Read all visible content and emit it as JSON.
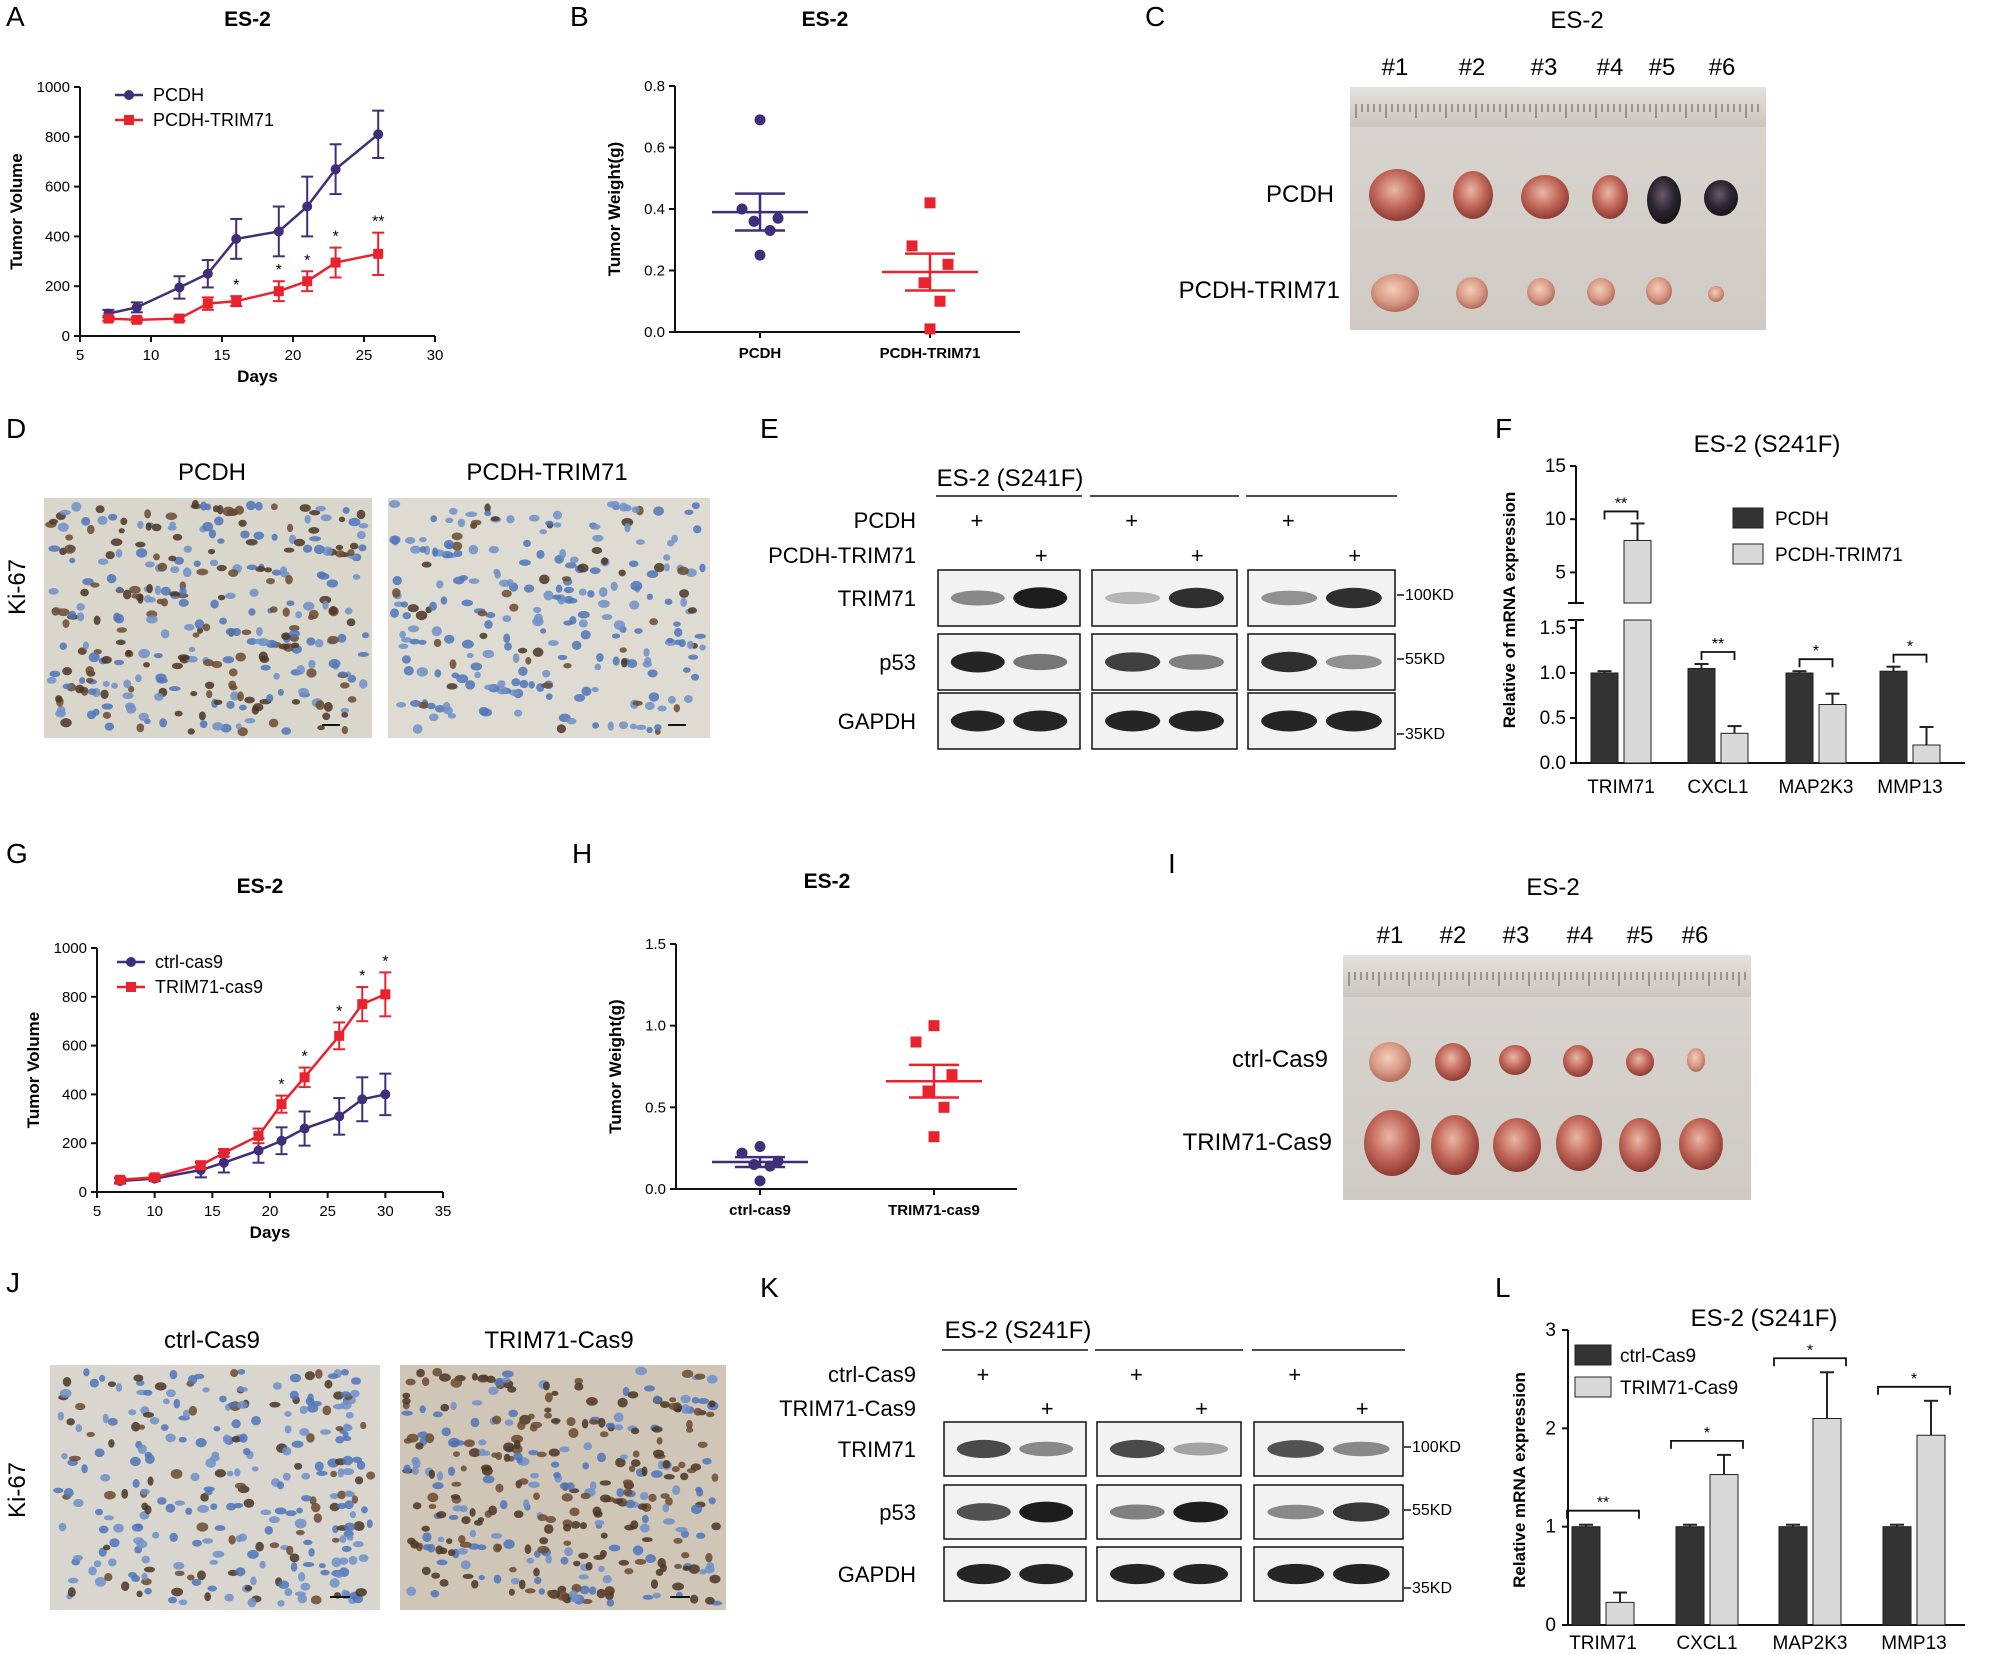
{
  "colors": {
    "purple": "#3f2f7a",
    "red": "#e8232d",
    "darkbar": "#333333",
    "lightbar": "#d9d9d9"
  },
  "panel_labels": {
    "A": "A",
    "B": "B",
    "C": "C",
    "D": "D",
    "E": "E",
    "F": "F",
    "G": "G",
    "H": "H",
    "I": "I",
    "J": "J",
    "K": "K",
    "L": "L"
  },
  "photos": {
    "C": {
      "title": "ES-2",
      "labels": [
        "#1",
        "#2",
        "#3",
        "#4",
        "#5",
        "#6"
      ],
      "rows": [
        "PCDH",
        "PCDH-TRIM71"
      ]
    },
    "I": {
      "title": "ES-2",
      "labels": [
        "#1",
        "#2",
        "#3",
        "#4",
        "#5",
        "#6"
      ],
      "rows": [
        "ctrl-Cas9",
        "TRIM71-Cas9"
      ]
    },
    "D": {
      "ylabel": "Ki-67",
      "left": "PCDH",
      "right": "PCDH-TRIM71"
    },
    "J": {
      "ylabel": "Ki-67",
      "left": "ctrl-Cas9",
      "right": "TRIM71-Cas9"
    }
  },
  "blots": {
    "E": {
      "title": "ES-2 (S241F)",
      "row1": "PCDH",
      "row2": "PCDH-TRIM71",
      "plus": "+",
      "bands": [
        "TRIM71",
        "p53",
        "GAPDH"
      ],
      "markers": [
        "100KD",
        "55KD",
        "35KD"
      ]
    },
    "K": {
      "title": "ES-2 (S241F)",
      "row1": "ctrl-Cas9",
      "row2": "TRIM71-Cas9",
      "plus": "+",
      "bands": [
        "TRIM71",
        "p53",
        "GAPDH"
      ],
      "markers": [
        "100KD",
        "55KD",
        "35KD"
      ]
    }
  },
  "chart_data": [
    {
      "id": "A",
      "type": "line",
      "title": "ES-2",
      "xlabel": "Days",
      "ylabel": "Tumor Volume",
      "xlim": [
        5,
        30
      ],
      "ylim": [
        0,
        1000
      ],
      "xticks": [
        5,
        10,
        15,
        20,
        25,
        30
      ],
      "yticks": [
        0,
        200,
        400,
        600,
        800,
        1000
      ],
      "series": [
        {
          "name": "PCDH",
          "color": "#3f2f7a",
          "marker": "circle",
          "x": [
            7,
            9,
            12,
            14,
            16,
            19,
            21,
            23,
            26
          ],
          "y": [
            90,
            115,
            195,
            250,
            390,
            420,
            520,
            670,
            810
          ],
          "err": [
            15,
            20,
            45,
            55,
            80,
            100,
            120,
            100,
            95
          ]
        },
        {
          "name": "PCDH-TRIM71",
          "color": "#e8232d",
          "marker": "square",
          "x": [
            7,
            9,
            12,
            14,
            16,
            19,
            21,
            23,
            26
          ],
          "y": [
            70,
            65,
            70,
            130,
            140,
            180,
            220,
            295,
            330
          ],
          "err": [
            10,
            10,
            10,
            25,
            20,
            40,
            40,
            60,
            85
          ]
        }
      ],
      "annotations": [
        {
          "x": 16,
          "text": "*"
        },
        {
          "x": 19,
          "text": "*"
        },
        {
          "x": 21,
          "text": "*"
        },
        {
          "x": 23,
          "text": "*"
        },
        {
          "x": 26,
          "text": "**"
        }
      ]
    },
    {
      "id": "B",
      "type": "scatter",
      "title": "ES-2",
      "ylabel": "Tumor Weight(g)",
      "ylim": [
        0,
        0.8
      ],
      "yticks": [
        "0.0",
        "0.2",
        "0.4",
        "0.6",
        "0.8"
      ],
      "categories": [
        "PCDH",
        "PCDH-TRIM71"
      ],
      "series": [
        {
          "name": "PCDH",
          "color": "#3f2f7a",
          "marker": "circle",
          "values": [
            0.69,
            0.4,
            0.37,
            0.36,
            0.33,
            0.25
          ],
          "mean": 0.39,
          "sem": 0.06
        },
        {
          "name": "PCDH-TRIM71",
          "color": "#e8232d",
          "marker": "square",
          "values": [
            0.42,
            0.28,
            0.22,
            0.16,
            0.1,
            0.01
          ],
          "mean": 0.195,
          "sem": 0.06
        }
      ]
    },
    {
      "id": "F",
      "type": "bar",
      "title": "ES-2 (S241F)",
      "ylabel": "Relative of mRNA expression",
      "categories": [
        "TRIM71",
        "CXCL1",
        "MAP2K3",
        "MMP13"
      ],
      "upper_ticks": [
        "5",
        "10",
        "15"
      ],
      "lower_ticks": [
        "0.0",
        "0.5",
        "1.0",
        "1.5"
      ],
      "series": [
        {
          "name": "PCDH",
          "color": "#333333",
          "values": [
            1.0,
            1.05,
            1.0,
            1.02
          ],
          "err": [
            0.02,
            0.05,
            0.02,
            0.05
          ]
        },
        {
          "name": "PCDH-TRIM71",
          "color": "#d9d9d9",
          "values": [
            8.0,
            0.33,
            0.65,
            0.2
          ],
          "err": [
            1.6,
            0.08,
            0.12,
            0.2
          ]
        }
      ],
      "significance": [
        "**",
        "**",
        "*",
        "*"
      ]
    },
    {
      "id": "G",
      "type": "line",
      "title": "ES-2",
      "xlabel": "Days",
      "ylabel": "Tumor Volume",
      "xlim": [
        5,
        35
      ],
      "ylim": [
        0,
        1000
      ],
      "xticks": [
        5,
        10,
        15,
        20,
        25,
        30,
        35
      ],
      "yticks": [
        0,
        200,
        400,
        600,
        800,
        1000
      ],
      "series": [
        {
          "name": "ctrl-cas9",
          "color": "#3f2f7a",
          "marker": "circle",
          "x": [
            7,
            10,
            14,
            16,
            19,
            21,
            23,
            26,
            28,
            30
          ],
          "y": [
            45,
            55,
            90,
            120,
            170,
            210,
            260,
            310,
            380,
            400
          ],
          "err": [
            10,
            10,
            30,
            40,
            50,
            55,
            70,
            75,
            90,
            85
          ]
        },
        {
          "name": "TRIM71-cas9",
          "color": "#e8232d",
          "marker": "square",
          "x": [
            7,
            10,
            14,
            16,
            19,
            21,
            23,
            26,
            28,
            30
          ],
          "y": [
            50,
            60,
            110,
            160,
            230,
            360,
            470,
            640,
            770,
            810
          ],
          "err": [
            10,
            10,
            15,
            15,
            30,
            35,
            40,
            55,
            70,
            90
          ]
        }
      ],
      "annotations": [
        {
          "x": 21,
          "text": "*"
        },
        {
          "x": 23,
          "text": "*"
        },
        {
          "x": 26,
          "text": "*"
        },
        {
          "x": 28,
          "text": "*"
        },
        {
          "x": 30,
          "text": "*"
        }
      ]
    },
    {
      "id": "H",
      "type": "scatter",
      "title": "ES-2",
      "ylabel": "Tumor Weight(g)",
      "ylim": [
        0,
        1.5
      ],
      "yticks": [
        "0.0",
        "0.5",
        "1.0",
        "1.5"
      ],
      "categories": [
        "ctrl-cas9",
        "TRIM71-cas9"
      ],
      "series": [
        {
          "name": "ctrl-cas9",
          "color": "#3f2f7a",
          "marker": "circle",
          "values": [
            0.26,
            0.22,
            0.17,
            0.15,
            0.14,
            0.05
          ],
          "mean": 0.165,
          "sem": 0.03
        },
        {
          "name": "TRIM71-cas9",
          "color": "#e8232d",
          "marker": "square",
          "values": [
            1.0,
            0.9,
            0.7,
            0.6,
            0.5,
            0.32
          ],
          "mean": 0.66,
          "sem": 0.1
        }
      ]
    },
    {
      "id": "L",
      "type": "bar",
      "title": "ES-2 (S241F)",
      "ylabel": "Relative mRNA expression",
      "ylim": [
        0,
        3
      ],
      "yticks": [
        "0",
        "1",
        "2",
        "3"
      ],
      "categories": [
        "TRIM71",
        "CXCL1",
        "MAP2K3",
        "MMP13"
      ],
      "series": [
        {
          "name": "ctrl-Cas9",
          "color": "#333333",
          "values": [
            1.0,
            1.0,
            1.0,
            1.0
          ],
          "err": [
            0.02,
            0.02,
            0.02,
            0.02
          ]
        },
        {
          "name": "TRIM71-Cas9",
          "color": "#d9d9d9",
          "values": [
            0.23,
            1.53,
            2.1,
            1.93
          ],
          "err": [
            0.1,
            0.2,
            0.47,
            0.35
          ]
        }
      ],
      "significance": [
        "**",
        "*",
        "*",
        "*"
      ]
    }
  ]
}
